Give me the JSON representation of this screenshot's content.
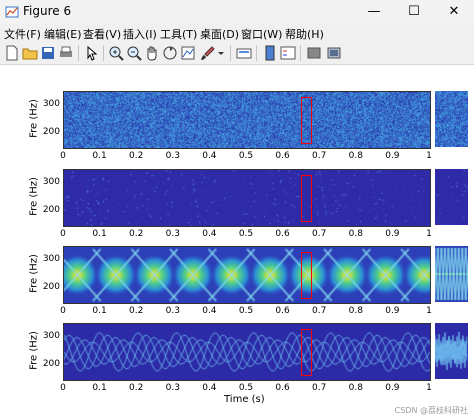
{
  "window": {
    "title": "Figure 6",
    "minimize": "—",
    "maximize": "☐",
    "close": "✕"
  },
  "menu": [
    "文件(F)",
    "编辑(E)",
    "查看(V)",
    "插入(I)",
    "工具(T)",
    "桌面(D)",
    "窗口(W)",
    "帮助(H)"
  ],
  "toolbar_icons": [
    "new-figure-icon",
    "open-file-icon",
    "save-icon",
    "print-icon",
    "edit-plot-arrow-icon",
    "zoom-in-icon",
    "zoom-out-icon",
    "pan-hand-icon",
    "rotate-3d-icon",
    "data-cursor-icon",
    "brush-icon",
    "brush-dropdown-icon",
    "link-plot-icon",
    "colorbar-icon",
    "legend-icon",
    "hide-plot-tools-icon",
    "show-plot-tools-icon"
  ],
  "chart_data": {
    "type": "heatmap",
    "ylabel": "Fre (Hz)",
    "xlabel": "Time (s)",
    "y_ticks": [
      "300",
      "200"
    ],
    "x_ticks": [
      "0",
      "0.1",
      "0.2",
      "0.3",
      "0.4",
      "0.5",
      "0.6",
      "0.7",
      "0.8",
      "0.9",
      "1"
    ],
    "xlim": [
      0,
      1
    ],
    "ylim": [
      150,
      350
    ],
    "highlight_box": {
      "t_start": 0.65,
      "t_end": 0.68,
      "f_low": 160,
      "f_high": 330
    },
    "panels": [
      {
        "kind": "noise",
        "x_ticks_shown": true
      },
      {
        "kind": "sparse",
        "x_ticks_shown": true
      },
      {
        "kind": "crossing-chirps",
        "x_ticks_shown": true
      },
      {
        "kind": "thin-curves",
        "x_ticks_shown": true
      }
    ],
    "colors": {
      "low": "#2a1fa8",
      "mid": "#1fa8d8",
      "high": "#f5e61a",
      "box": "#ff0000"
    }
  },
  "watermark": "CSDN @荔枝科研社"
}
